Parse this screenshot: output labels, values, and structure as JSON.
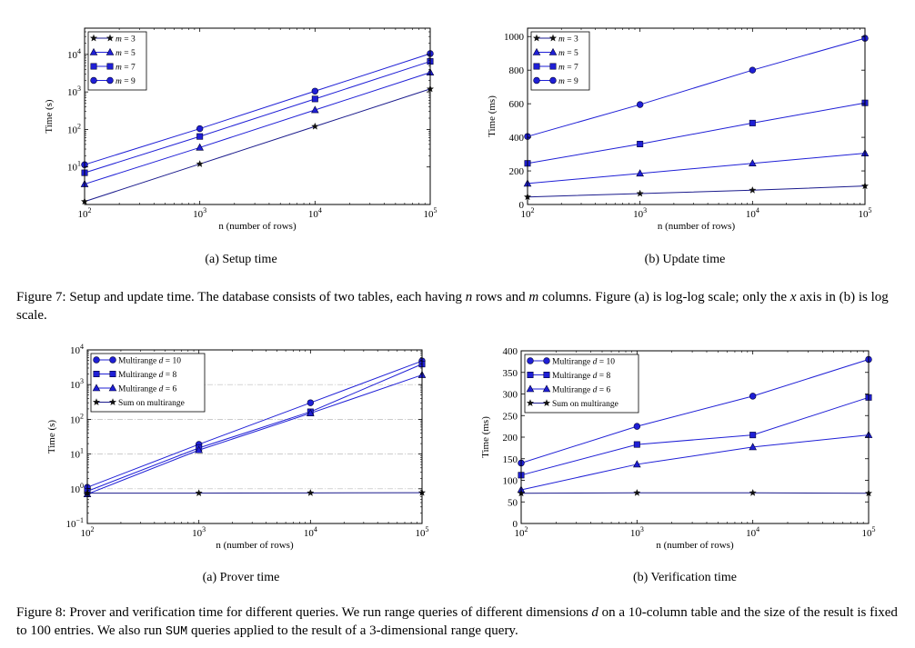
{
  "figure7": {
    "subcaption_a": "(a) Setup time",
    "subcaption_b": "(b) Update time",
    "caption_parts": [
      "Figure 7: Setup and update time. The database consists of two tables, each having ",
      "n",
      " rows and ",
      "m",
      " columns. Figure (a) is log-log scale; only the ",
      "x",
      " axis in (b) is log scale."
    ]
  },
  "figure8": {
    "subcaption_a": "(a) Prover time",
    "subcaption_b": "(b) Verification time",
    "caption_parts": [
      "Figure 8: Prover and verification time for different queries. We run range queries of different dimensions ",
      "d",
      " on a 10-column table and the size of the result is fixed to 100 entries. We also run ",
      "SUM",
      " queries applied to the result of a 3-dimensional range query."
    ]
  },
  "colors": {
    "series": "#1f1fd6",
    "sum": "#1a1a8c",
    "grid": "#bbbbbb",
    "axis": "#000000"
  },
  "chart_data": [
    {
      "id": "setup",
      "type": "line",
      "xscale": "log",
      "yscale": "log",
      "xlabel": "n (number of rows)",
      "ylabel": "Time (s)",
      "xlim": [
        100,
        100000
      ],
      "ylim": [
        1,
        50000
      ],
      "xticks": [
        [
          100,
          "10",
          "2"
        ],
        [
          1000,
          "10",
          "3"
        ],
        [
          10000,
          "10",
          "4"
        ],
        [
          100000,
          "10",
          "5"
        ]
      ],
      "yticks": [
        [
          10,
          "10",
          "1"
        ],
        [
          100,
          "10",
          "2"
        ],
        [
          1000,
          "10",
          "3"
        ],
        [
          10000,
          "10",
          "4"
        ]
      ],
      "grid": false,
      "legend": "top-left",
      "legend_style": "math",
      "x": [
        100,
        1000,
        10000,
        100000
      ],
      "series": [
        {
          "name": "m = 3",
          "marker": "star",
          "values": [
            1.2,
            12,
            120,
            1200
          ]
        },
        {
          "name": "m = 5",
          "marker": "triangle",
          "values": [
            3.5,
            33,
            330,
            3300
          ]
        },
        {
          "name": "m = 7",
          "marker": "square",
          "values": [
            7,
            65,
            650,
            6500
          ]
        },
        {
          "name": "m = 9",
          "marker": "circle",
          "values": [
            11.5,
            105,
            1050,
            10500
          ]
        }
      ]
    },
    {
      "id": "update",
      "type": "line",
      "xscale": "log",
      "yscale": "linear",
      "xlabel": "n (number of rows)",
      "ylabel": "Time (ms)",
      "xlim": [
        100,
        100000
      ],
      "ylim": [
        0,
        1050
      ],
      "xticks": [
        [
          100,
          "10",
          "2"
        ],
        [
          1000,
          "10",
          "3"
        ],
        [
          10000,
          "10",
          "4"
        ],
        [
          100000,
          "10",
          "5"
        ]
      ],
      "yticks": [
        [
          0,
          "0"
        ],
        [
          200,
          "200"
        ],
        [
          400,
          "400"
        ],
        [
          600,
          "600"
        ],
        [
          800,
          "800"
        ],
        [
          1000,
          "1000"
        ]
      ],
      "grid": false,
      "legend": "top-left",
      "legend_style": "math",
      "x": [
        100,
        1000,
        10000,
        100000
      ],
      "series": [
        {
          "name": "m = 3",
          "marker": "star",
          "values": [
            45,
            65,
            85,
            110
          ]
        },
        {
          "name": "m = 5",
          "marker": "triangle",
          "values": [
            125,
            185,
            245,
            305
          ]
        },
        {
          "name": "m = 7",
          "marker": "square",
          "values": [
            245,
            360,
            485,
            605
          ]
        },
        {
          "name": "m = 9",
          "marker": "circle",
          "values": [
            405,
            595,
            800,
            990
          ]
        }
      ]
    },
    {
      "id": "prover",
      "type": "line",
      "xscale": "log",
      "yscale": "log",
      "xlabel": "n (number of rows)",
      "ylabel": "Time (s)",
      "xlim": [
        100,
        100000
      ],
      "ylim": [
        0.1,
        10000
      ],
      "xticks": [
        [
          100,
          "10",
          "2"
        ],
        [
          1000,
          "10",
          "3"
        ],
        [
          10000,
          "10",
          "4"
        ],
        [
          100000,
          "10",
          "5"
        ]
      ],
      "yticks": [
        [
          0.1,
          "10",
          "−1"
        ],
        [
          1,
          "10",
          "0"
        ],
        [
          10,
          "10",
          "1"
        ],
        [
          100,
          "10",
          "2"
        ],
        [
          1000,
          "10",
          "3"
        ],
        [
          10000,
          "10",
          "4"
        ]
      ],
      "grid": true,
      "legend": "top-left",
      "legend_style": "text",
      "x": [
        100,
        1000,
        10000,
        100000
      ],
      "series": [
        {
          "name": "Multirange d = 10",
          "marker": "circle",
          "values": [
            1.1,
            19,
            300,
            4800
          ]
        },
        {
          "name": "Multirange d = 8",
          "marker": "square",
          "values": [
            0.85,
            15,
            165,
            3900
          ]
        },
        {
          "name": "Multirange d = 6",
          "marker": "triangle",
          "values": [
            0.7,
            13,
            150,
            1900
          ]
        },
        {
          "name": "Sum on multirange",
          "marker": "star",
          "values": [
            0.75,
            0.75,
            0.76,
            0.77
          ]
        }
      ]
    },
    {
      "id": "verify",
      "type": "line",
      "xscale": "log",
      "yscale": "linear",
      "xlabel": "n (number of rows)",
      "ylabel": "Time (ms)",
      "xlim": [
        100,
        100000
      ],
      "ylim": [
        0,
        400
      ],
      "xticks": [
        [
          100,
          "10",
          "2"
        ],
        [
          1000,
          "10",
          "3"
        ],
        [
          10000,
          "10",
          "4"
        ],
        [
          100000,
          "10",
          "5"
        ]
      ],
      "yticks": [
        [
          0,
          "0"
        ],
        [
          50,
          "50"
        ],
        [
          100,
          "100"
        ],
        [
          150,
          "150"
        ],
        [
          200,
          "200"
        ],
        [
          250,
          "250"
        ],
        [
          300,
          "300"
        ],
        [
          350,
          "350"
        ],
        [
          400,
          "400"
        ]
      ],
      "grid": false,
      "legend": "top-left",
      "legend_style": "text",
      "x": [
        100,
        1000,
        10000,
        100000
      ],
      "series": [
        {
          "name": "Multirange d = 10",
          "marker": "circle",
          "values": [
            140,
            225,
            295,
            380
          ]
        },
        {
          "name": "Multirange d = 8",
          "marker": "square",
          "values": [
            112,
            183,
            205,
            292
          ]
        },
        {
          "name": "Multirange d = 6",
          "marker": "triangle",
          "values": [
            78,
            137,
            177,
            205
          ]
        },
        {
          "name": "Sum on multirange",
          "marker": "star",
          "values": [
            70,
            71,
            71,
            70
          ]
        }
      ]
    }
  ]
}
